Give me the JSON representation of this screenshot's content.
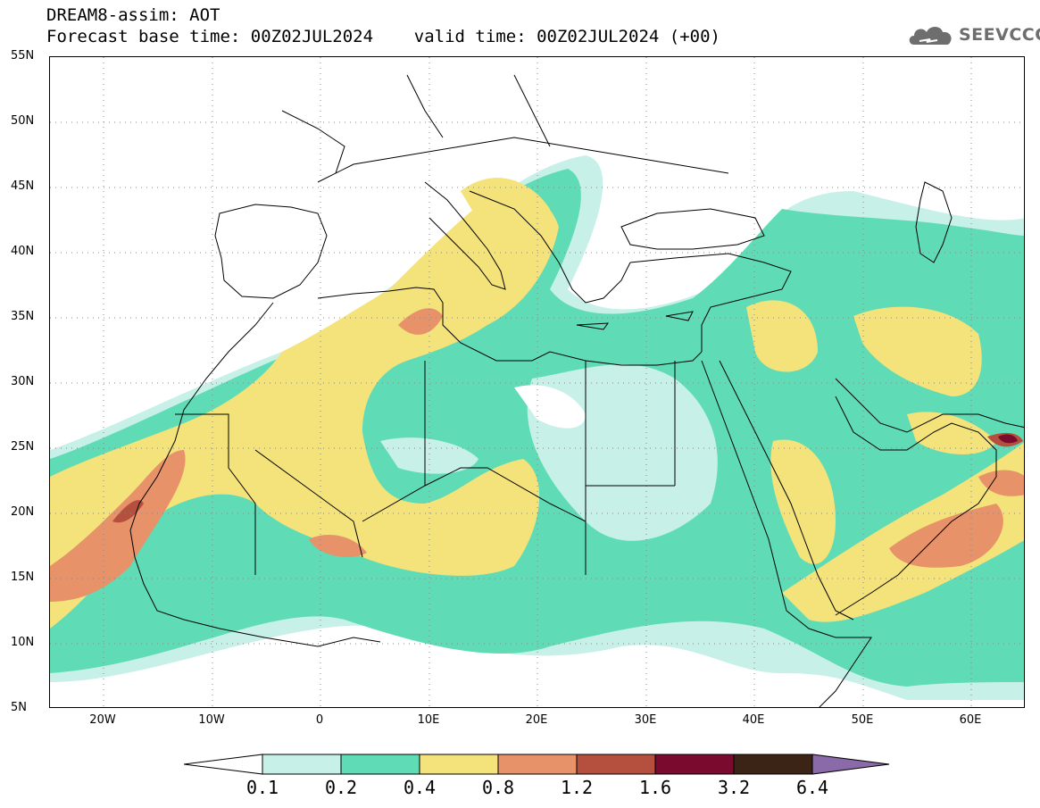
{
  "header": {
    "line1": "DREAM8-assim: AOT",
    "line2": "Forecast base time: 00Z02JUL2024    valid time: 00Z02JUL2024 (+00)"
  },
  "logo": {
    "text": "SEEVCCC",
    "icon": "cloud-logo-icon"
  },
  "map": {
    "lat_labels": [
      "55N",
      "50N",
      "45N",
      "40N",
      "35N",
      "30N",
      "25N",
      "20N",
      "15N",
      "10N",
      "5N"
    ],
    "lon_labels": [
      "20W",
      "10W",
      "0",
      "10E",
      "20E",
      "30E",
      "40E",
      "50E",
      "60E"
    ],
    "lat_range": [
      5,
      55
    ],
    "lon_range": [
      -25,
      65
    ],
    "grid": "dotted",
    "field": "Aerosol Optical Thickness"
  },
  "colorbar": {
    "tick_labels": [
      "0.1",
      "0.2",
      "0.4",
      "0.8",
      "1.2",
      "1.6",
      "3.2",
      "6.4"
    ],
    "colors": [
      "#ffffff",
      "#c6f0e8",
      "#5fdcb6",
      "#f4e27a",
      "#e8926a",
      "#b5503f",
      "#7a0a2e",
      "#3b2416",
      "#8a6aa8"
    ]
  }
}
